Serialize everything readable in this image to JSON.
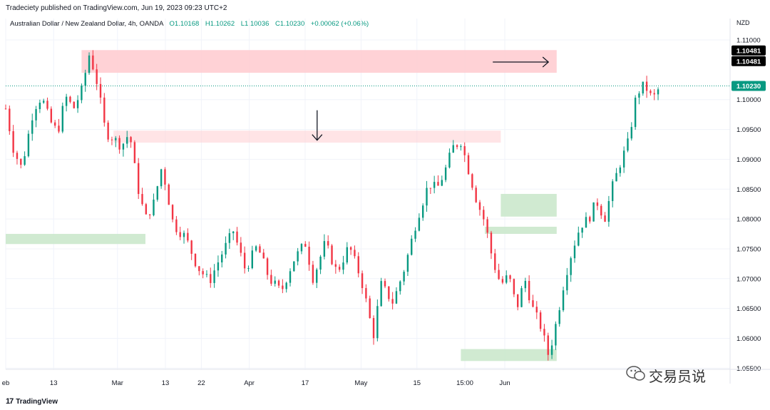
{
  "header": {
    "published": "Tradeciety published on TradingView.com, Jun 19, 2023 09:23 UTC+2",
    "symbol": "Australian Dollar / New Zealand Dollar, 4h, OANDA",
    "ohlc": {
      "open": "O1.10168",
      "high": "H1.10262",
      "low": "L1.10036",
      "close": "C1.10230",
      "change": "+0.00062 (+0.06%)"
    },
    "currency": "NZD"
  },
  "footer": {
    "brand": "TradingView",
    "logo": "17"
  },
  "watermark": {
    "text": "交易员说"
  },
  "price_tags": [
    {
      "value": "1.10481",
      "color": "#000000"
    },
    {
      "value": "1.10481",
      "color": "#000000"
    },
    {
      "value": "1.10230",
      "color": "#089981"
    }
  ],
  "colors": {
    "up": "#089981",
    "down": "#f23645",
    "supply_zone": "#ffcdd2",
    "demand_zone": "#c8e6c9"
  },
  "chart_data": {
    "type": "candlestick",
    "y_ticks": [
      "1.11000",
      "1.10000",
      "1.09500",
      "1.09000",
      "1.08500",
      "1.08000",
      "1.07500",
      "1.07000",
      "1.06500",
      "1.06000",
      "1.05500"
    ],
    "x_ticks": [
      "eb",
      "13",
      "Mar",
      "13",
      "22",
      "Apr",
      "17",
      "May",
      "15",
      "15:00",
      "Jun"
    ],
    "ylim": [
      1.0548,
      1.1112
    ],
    "grid": true,
    "last_price": 1.1023,
    "zones": [
      {
        "kind": "supply",
        "from": "Feb 20",
        "to": "Jun 19",
        "low": 1.1045,
        "high": 1.1083
      },
      {
        "kind": "supply",
        "from": "Feb 28",
        "to": "Jun 5",
        "low": 1.0928,
        "high": 1.0948
      },
      {
        "kind": "demand",
        "from": "Feb 1",
        "to": "Mar 8",
        "low": 1.0758,
        "high": 1.0775
      },
      {
        "kind": "demand",
        "from": "Jun 5",
        "to": "Jun 19",
        "low": 1.0804,
        "high": 1.0842
      },
      {
        "kind": "demand",
        "from": "Jun 1",
        "to": "Jun 19",
        "low": 1.0775,
        "high": 1.0787
      },
      {
        "kind": "demand",
        "from": "May 26",
        "to": "Jun 19",
        "low": 1.0562,
        "high": 1.0582
      }
    ],
    "annotations": [
      {
        "type": "arrow-right",
        "date": "Jun 3",
        "price": 1.1063
      },
      {
        "type": "arrow-down",
        "date": "Apr 20",
        "price": 1.0932
      }
    ],
    "path_points": [
      [
        "Feb 1",
        1.0985
      ],
      [
        "Feb 3",
        1.0915
      ],
      [
        "Feb 5",
        1.0885
      ],
      [
        "Feb 8",
        1.0985
      ],
      [
        "Feb 10",
        1.1005
      ],
      [
        "Feb 12",
        1.0965
      ],
      [
        "Feb 14",
        1.0945
      ],
      [
        "Feb 16",
        1.1005
      ],
      [
        "Feb 18",
        1.0985
      ],
      [
        "Feb 20",
        1.1015
      ],
      [
        "Feb 22",
        1.1078
      ],
      [
        "Feb 24",
        1.1025
      ],
      [
        "Feb 26",
        1.0945
      ],
      [
        "Feb 28",
        1.0935
      ],
      [
        "Mar 2",
        1.0922
      ],
      [
        "Mar 4",
        1.0945
      ],
      [
        "Mar 6",
        1.0855
      ],
      [
        "Mar 8",
        1.08
      ],
      [
        "Mar 10",
        1.0825
      ],
      [
        "Mar 12",
        1.0885
      ],
      [
        "Mar 13",
        1.086
      ],
      [
        "Mar 15",
        1.079
      ],
      [
        "Mar 18",
        1.077
      ],
      [
        "Mar 21",
        1.072
      ],
      [
        "Mar 24",
        1.0695
      ],
      [
        "Mar 27",
        1.074
      ],
      [
        "Mar 30",
        1.078
      ],
      [
        "Apr 2",
        1.0715
      ],
      [
        "Apr 5",
        1.0755
      ],
      [
        "Apr 8",
        1.07
      ],
      [
        "Apr 11",
        1.0678
      ],
      [
        "Apr 14",
        1.073
      ],
      [
        "Apr 17",
        1.076
      ],
      [
        "Apr 19",
        1.07
      ],
      [
        "Apr 22",
        1.076
      ],
      [
        "Apr 25",
        1.071
      ],
      [
        "Apr 28",
        1.0755
      ],
      [
        "May 1",
        1.07
      ],
      [
        "May 3",
        1.064
      ],
      [
        "May 4",
        1.06
      ],
      [
        "May 6",
        1.069
      ],
      [
        "May 9",
        1.066
      ],
      [
        "May 12",
        1.072
      ],
      [
        "May 15",
        1.08
      ],
      [
        "May 18",
        1.086
      ],
      [
        "May 20",
        1.085
      ],
      [
        "May 22",
        1.088
      ],
      [
        "May 24",
        1.092
      ],
      [
        "May 26",
        1.093
      ],
      [
        "May 28",
        1.088
      ],
      [
        "May 30",
        1.083
      ],
      [
        "Jun 1",
        1.0795
      ],
      [
        "Jun 3",
        1.073
      ],
      [
        "Jun 5",
        1.069
      ],
      [
        "Jun 7",
        1.0705
      ],
      [
        "Jun 9",
        1.065
      ],
      [
        "Jun 11",
        1.07
      ],
      [
        "Jun 13",
        1.065
      ],
      [
        "Jun 15",
        1.062
      ],
      [
        "Jun 17",
        1.057
      ],
      [
        "Jun 19",
        1.063
      ],
      [
        "Jun 21",
        1.07
      ],
      [
        "Jun 23",
        1.075
      ],
      [
        "Jun 25",
        1.079
      ],
      [
        "Jun 27",
        1.08
      ],
      [
        "Jun 29",
        1.083
      ],
      [
        "Jul 1",
        1.08
      ],
      [
        "Jul 3",
        1.0855
      ],
      [
        "Jul 5",
        1.0895
      ],
      [
        "Jul 7",
        1.093
      ],
      [
        "Jul 9",
        1.101
      ],
      [
        "Jul 11",
        1.1025
      ],
      [
        "Jul 13",
        1.1
      ],
      [
        "Jul 15",
        1.1023
      ]
    ]
  }
}
